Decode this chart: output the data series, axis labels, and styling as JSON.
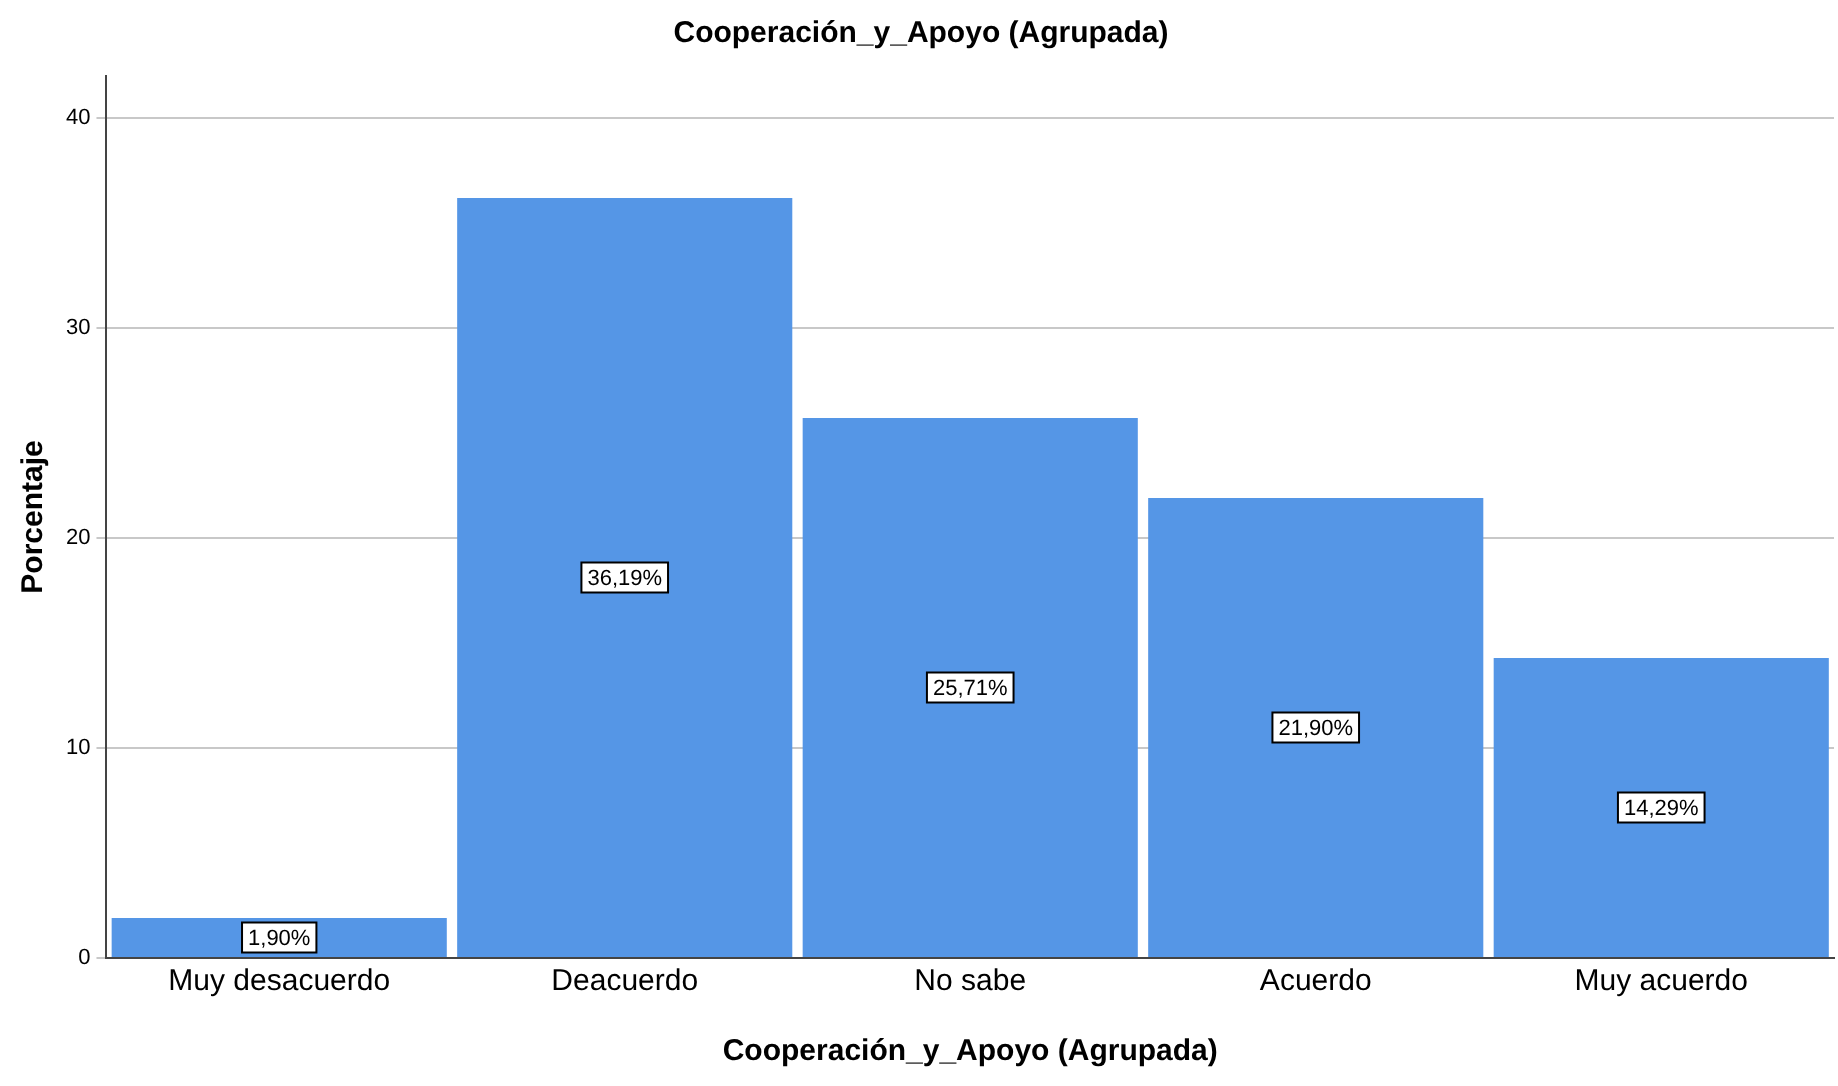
{
  "chart_data": {
    "type": "bar",
    "title": "Cooperación_y_Apoyo (Agrupada)",
    "xlabel": "Cooperación_y_Apoyo (Agrupada)",
    "ylabel": "Porcentaje",
    "categories": [
      "Muy desacuerdo",
      "Deacuerdo",
      "No sabe",
      "Acuerdo",
      "Muy acuerdo"
    ],
    "values": [
      1.9,
      36.19,
      25.71,
      21.9,
      14.29
    ],
    "value_labels": [
      "1,90%",
      "36,19%",
      "25,71%",
      "21,90%",
      "14,29%"
    ],
    "color": "#5596e6",
    "ylim": [
      0,
      42
    ],
    "yticks": [
      0,
      10,
      20,
      30,
      40
    ],
    "grid": "y",
    "legend": false
  }
}
